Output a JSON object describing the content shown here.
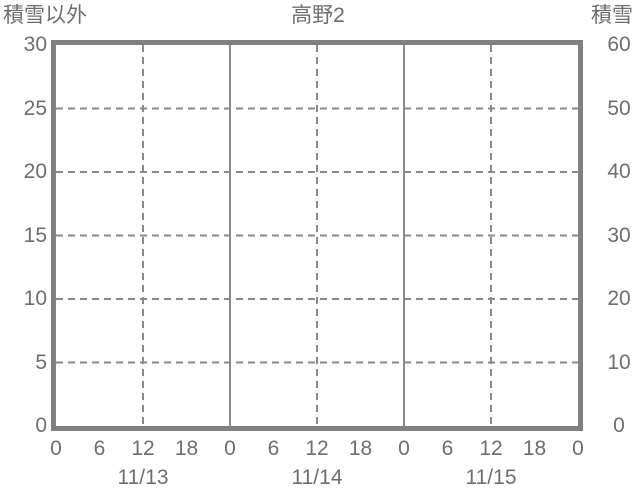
{
  "chart_data": {
    "type": "line",
    "title": "高野2",
    "left_axis": {
      "title": "積雪以外",
      "ticks": [
        30,
        25,
        20,
        15,
        10,
        5,
        0
      ],
      "range": [
        0,
        30
      ]
    },
    "right_axis": {
      "title": "積雪",
      "ticks": [
        60,
        50,
        40,
        30,
        20,
        10,
        0
      ],
      "range": [
        0,
        60
      ]
    },
    "x_axis": {
      "hour_tick_labels": [
        "0",
        "6",
        "12",
        "18",
        "0",
        "6",
        "12",
        "18",
        "0",
        "6",
        "12",
        "18",
        "0"
      ],
      "hour_tick_values": [
        0,
        6,
        12,
        18,
        24,
        30,
        36,
        42,
        48,
        54,
        60,
        66,
        72
      ],
      "date_labels": [
        "11/13",
        "11/14",
        "11/15"
      ],
      "date_center_hours": [
        12,
        36,
        60
      ],
      "range_hours": [
        0,
        72
      ],
      "solid_gridlines_at_hours": [
        24,
        48
      ],
      "dashed_gridlines_at_hours": [
        12,
        36,
        60
      ]
    },
    "horizontal_dashed_gridlines_at": [
      5,
      10,
      15,
      20,
      25
    ],
    "series": [],
    "legend": "none",
    "grid": true,
    "colors": {
      "border": "#808080",
      "gridline": "#8a8a8a",
      "text": "#6e6e6e",
      "background": "#ffffff"
    }
  }
}
